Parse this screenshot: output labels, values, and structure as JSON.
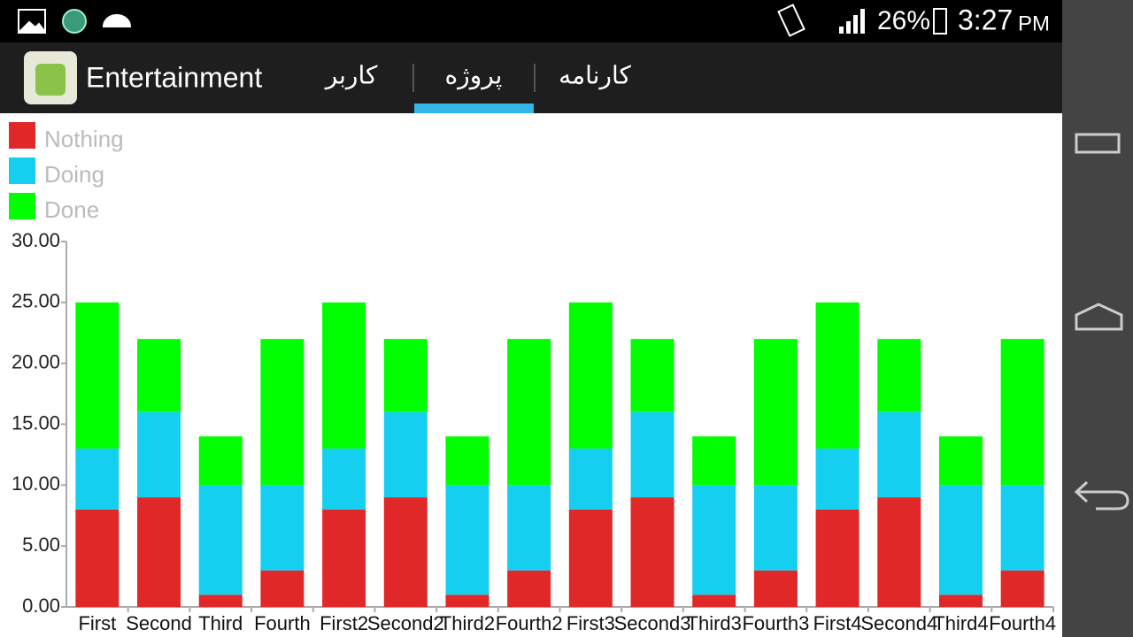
{
  "status_bar": {
    "battery": "26%",
    "time": "3:27",
    "period": "PM"
  },
  "action_bar": {
    "title": "Entertainment",
    "tabs": [
      "کاربر",
      "پروژه",
      "کارنامه"
    ]
  },
  "chart_data": {
    "type": "stacked_bar",
    "categories": [
      "First",
      "Second",
      "Third",
      "Fourth",
      "First2",
      "Second2",
      "Third2",
      "Fourth2",
      "First3",
      "Second3",
      "Third3",
      "Fourth3",
      "First4",
      "Second4",
      "Third4",
      "Fourth4"
    ],
    "series": [
      {
        "name": "Nothing",
        "color": "#e02828",
        "values": [
          8,
          9,
          1,
          3,
          8,
          9,
          1,
          3,
          8,
          9,
          1,
          3,
          8,
          9,
          1,
          3
        ]
      },
      {
        "name": "Doing",
        "color": "#14cff0",
        "values": [
          5,
          7,
          9,
          7,
          5,
          7,
          9,
          7,
          5,
          7,
          9,
          7,
          5,
          7,
          9,
          7
        ]
      },
      {
        "name": "Done",
        "color": "#00ff00",
        "values": [
          12,
          6,
          4,
          12,
          12,
          6,
          4,
          12,
          12,
          6,
          4,
          12,
          12,
          6,
          4,
          12
        ]
      }
    ],
    "ylim": [
      0,
      30
    ],
    "yticks": [
      {
        "value": 0,
        "label": "0.00"
      },
      {
        "value": 5,
        "label": "5.00"
      },
      {
        "value": 10,
        "label": "10.00"
      },
      {
        "value": 15,
        "label": "15.00"
      },
      {
        "value": 20,
        "label": "20.00"
      },
      {
        "value": 25,
        "label": "25.00"
      },
      {
        "value": 30,
        "label": "30.00"
      }
    ],
    "legend": "top-left"
  }
}
